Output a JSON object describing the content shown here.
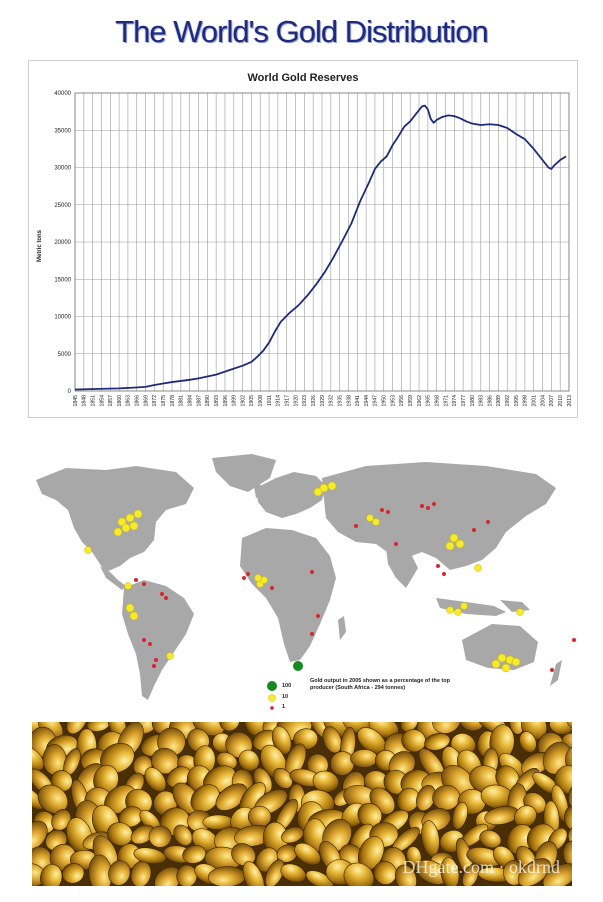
{
  "page": {
    "headline": "The World's Gold Distribution"
  },
  "chart_data": {
    "type": "line",
    "title": "World Gold Reserves",
    "xlabel": "",
    "ylabel": "Metric tons",
    "ylim": [
      0,
      40000
    ],
    "yticks": [
      "0",
      "5000",
      "10000",
      "15000",
      "20000",
      "25000",
      "30000",
      "35000",
      "40000"
    ],
    "xticks": [
      "1845",
      "1848",
      "1851",
      "1854",
      "1857",
      "1860",
      "1863",
      "1866",
      "1869",
      "1872",
      "1875",
      "1878",
      "1881",
      "1884",
      "1887",
      "1890",
      "1893",
      "1896",
      "1899",
      "1902",
      "1905",
      "1908",
      "1911",
      "1914",
      "1917",
      "1920",
      "1923",
      "1926",
      "1929",
      "1932",
      "1935",
      "1938",
      "1941",
      "1944",
      "1947",
      "1950",
      "1953",
      "1956",
      "1959",
      "1962",
      "1965",
      "1968",
      "1971",
      "1974",
      "1977",
      "1980",
      "1983",
      "1986",
      "1989",
      "1992",
      "1995",
      "1998",
      "2001",
      "2004",
      "2007",
      "2010",
      "2013"
    ],
    "grid": true,
    "series": [
      {
        "color": "#1f2a7a",
        "x": [
          1845,
          1850,
          1855,
          1860,
          1865,
          1869,
          1872,
          1875,
          1878,
          1881,
          1884,
          1887,
          1890,
          1893,
          1896,
          1899,
          1902,
          1905,
          1907,
          1909,
          1911,
          1913,
          1915,
          1918,
          1921,
          1924,
          1927,
          1930,
          1933,
          1936,
          1939,
          1942,
          1945,
          1947,
          1949,
          1951,
          1953,
          1955,
          1957,
          1959,
          1961,
          1963,
          1964,
          1965,
          1966,
          1967,
          1968,
          1970,
          1972,
          1974,
          1976,
          1978,
          1980,
          1983,
          1986,
          1989,
          1992,
          1995,
          1998,
          2001,
          2004,
          2006,
          2007,
          2008,
          2010,
          2012
        ],
        "y": [
          200,
          250,
          300,
          350,
          450,
          550,
          800,
          1000,
          1200,
          1350,
          1500,
          1700,
          1950,
          2200,
          2600,
          3000,
          3400,
          3900,
          4600,
          5400,
          6500,
          8000,
          9300,
          10500,
          11500,
          12800,
          14300,
          16000,
          18000,
          20200,
          22500,
          25500,
          28000,
          29800,
          30800,
          31500,
          33000,
          34200,
          35500,
          36200,
          37200,
          38200,
          38300,
          37800,
          36500,
          36000,
          36400,
          36800,
          37000,
          36900,
          36600,
          36200,
          35900,
          35700,
          35800,
          35700,
          35300,
          34500,
          33800,
          32500,
          31000,
          30000,
          29800,
          30300,
          31000,
          31500
        ]
      }
    ]
  },
  "map": {
    "legend_sizes": [
      "100",
      "10",
      "1"
    ],
    "legend_text": "Gold output in 2005 shown as a percentage of the top producer (South Africa - 294 tonnes)"
  },
  "photo": {
    "watermark": "DHgate.com · okdrnd"
  }
}
